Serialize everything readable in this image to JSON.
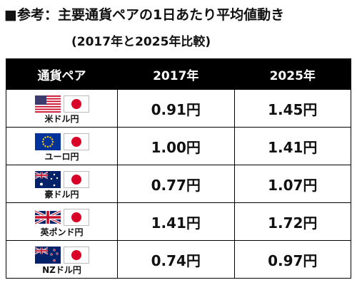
{
  "title": "■参考：主要通貨ペアの1日あたり平均値動き",
  "subtitle": "(2017年と2025年比較)",
  "table": {
    "header": [
      "通貨ペア",
      "2017年",
      "2025年"
    ],
    "rows": [
      [
        "米ドル円",
        "0.91円",
        "1.45円"
      ],
      [
        "ユーロ円",
        "1.00円",
        "1.41円"
      ],
      [
        "豪ドル円",
        "0.77円",
        "1.07円"
      ],
      [
        "英ポンド円",
        "1.41円",
        "1.72円"
      ],
      [
        "NZドル円",
        "0.74円",
        "0.97円"
      ]
    ]
  }
}
